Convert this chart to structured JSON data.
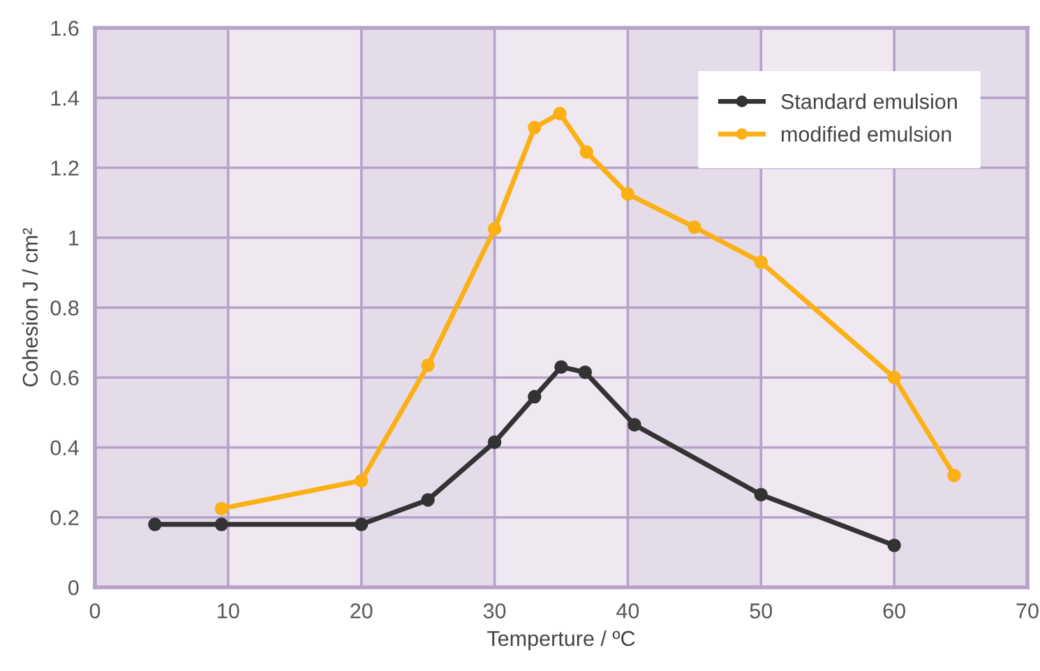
{
  "chart_data": {
    "type": "line",
    "xlabel": "Temperture / ºC",
    "ylabel": "Cohesion J / cm²",
    "xlim": [
      0,
      70
    ],
    "xticks": [
      0,
      10,
      20,
      30,
      40,
      50,
      60,
      70
    ],
    "ylim": [
      0,
      1.6
    ],
    "yticks": [
      0,
      0.2,
      0.4,
      0.6,
      0.8,
      1,
      1.2,
      1.4,
      1.6
    ],
    "grid": true,
    "legend": "top right",
    "marker": "circle",
    "line_style": "solid",
    "bands": [
      {
        "axis": "x",
        "from": 0,
        "to": 10,
        "color": "#e5dcea"
      },
      {
        "axis": "x",
        "from": 10,
        "to": 20,
        "color": "#efe8f1"
      },
      {
        "axis": "x",
        "from": 20,
        "to": 30,
        "color": "#e5dcea"
      },
      {
        "axis": "x",
        "from": 30,
        "to": 40,
        "color": "#efe8f1"
      },
      {
        "axis": "x",
        "from": 40,
        "to": 50,
        "color": "#e5dcea"
      },
      {
        "axis": "x",
        "from": 50,
        "to": 60,
        "color": "#efe8f1"
      },
      {
        "axis": "x",
        "from": 60,
        "to": 70,
        "color": "#e5dcea"
      }
    ],
    "series": [
      {
        "name": "Standard emulsion",
        "color": "#333333",
        "x": [
          4.5,
          9.5,
          20,
          25,
          30,
          33,
          35,
          36.8,
          40.5,
          50,
          60
        ],
        "values": [
          0.18,
          0.18,
          0.18,
          0.25,
          0.415,
          0.545,
          0.63,
          0.615,
          0.465,
          0.265,
          0.12
        ]
      },
      {
        "name": "modified emulsion",
        "color": "#fbb016",
        "x": [
          9.5,
          20,
          25,
          30,
          33,
          34.9,
          36.9,
          40,
          45,
          50,
          60,
          64.5
        ],
        "values": [
          0.225,
          0.305,
          0.635,
          1.025,
          1.315,
          1.355,
          1.245,
          1.125,
          1.03,
          0.93,
          0.6,
          0.32
        ]
      }
    ]
  }
}
